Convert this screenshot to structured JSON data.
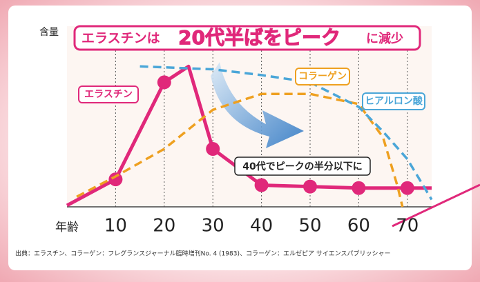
{
  "chart_data": {
    "type": "line",
    "title": [
      "エラスチンは",
      "20代半ばをピーク",
      "に減少"
    ],
    "ylabel": "含量",
    "xlabel": "年齢",
    "xlim": [
      0,
      75
    ],
    "xticks": [
      10,
      20,
      30,
      40,
      50,
      60,
      70
    ],
    "ylim": [
      0,
      100
    ],
    "grid": true,
    "annotation": "40代でピークの半分以下に",
    "source": "出典：エラスチン、コラーゲン：フレグランスジャーナル臨時増刊No. 4 (1983)、コラーゲン：エルゼピア サイエンスパブリッシャー",
    "series": [
      {
        "name": "エラスチン",
        "color": "#e0287a",
        "style": "solid",
        "markers": true,
        "x": [
          0,
          10,
          20,
          25,
          30,
          40,
          50,
          60,
          70,
          75
        ],
        "values": [
          1,
          19,
          86,
          97,
          40,
          15,
          14,
          13,
          13,
          13
        ]
      },
      {
        "name": "コラーゲン",
        "color": "#eea020",
        "style": "dashed",
        "x": [
          2,
          10,
          20,
          30,
          40,
          50,
          60,
          65,
          68,
          69
        ],
        "values": [
          7,
          21,
          40,
          67,
          78,
          78,
          71,
          48,
          14,
          0
        ]
      },
      {
        "name": "ヒアルロン酸",
        "color": "#4aa6d8",
        "style": "dashed",
        "x": [
          15,
          30,
          40,
          50,
          60,
          65,
          70,
          75
        ],
        "values": [
          97,
          95,
          91,
          86,
          69,
          52,
          33,
          5
        ]
      }
    ]
  }
}
